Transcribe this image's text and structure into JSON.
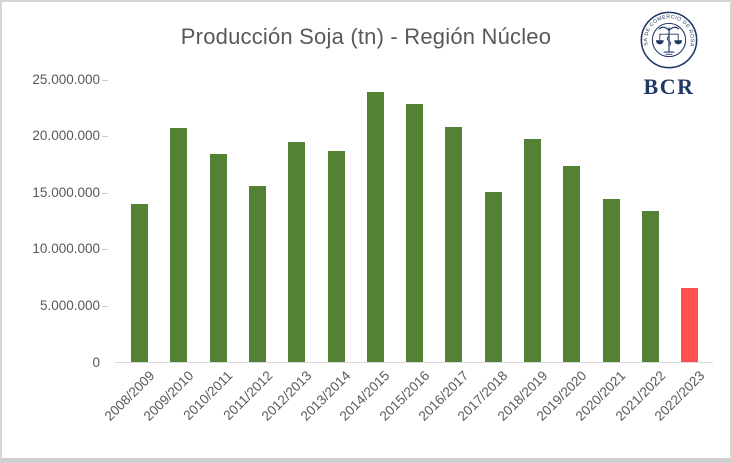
{
  "chart": {
    "title": "Producción Soja (tn) - Región Núcleo"
  },
  "logo": {
    "wordmark": "BCR",
    "seal_text": "BOLSA DE COMERCIO DE ROSARIO",
    "color": "#1f3864"
  },
  "chart_data": {
    "type": "bar",
    "title": "Producción Soja (tn) - Región Núcleo",
    "categories": [
      "2008/2009",
      "2009/2010",
      "2010/2011",
      "2011/2012",
      "2012/2013",
      "2013/2014",
      "2014/2015",
      "2015/2016",
      "2016/2017",
      "2017/2018",
      "2018/2019",
      "2019/2020",
      "2020/2021",
      "2021/2022",
      "2022/2023"
    ],
    "values": [
      14000000,
      20700000,
      18400000,
      15600000,
      19500000,
      18700000,
      23900000,
      22800000,
      20800000,
      15100000,
      19700000,
      17400000,
      14400000,
      13400000,
      6600000
    ],
    "bar_color": "#548235",
    "highlight_color": "#ff5050",
    "highlight_index": 14,
    "ylim": [
      0,
      25000000
    ],
    "ytick_step": 5000000,
    "ytick_labels": [
      "0",
      "5.000.000",
      "10.000.000",
      "15.000.000",
      "20.000.000",
      "25.000.000"
    ],
    "xlabel": "",
    "ylabel": "",
    "grid": false,
    "legend": false,
    "axis_color": "#d9d9d9",
    "text_color": "#595959"
  }
}
